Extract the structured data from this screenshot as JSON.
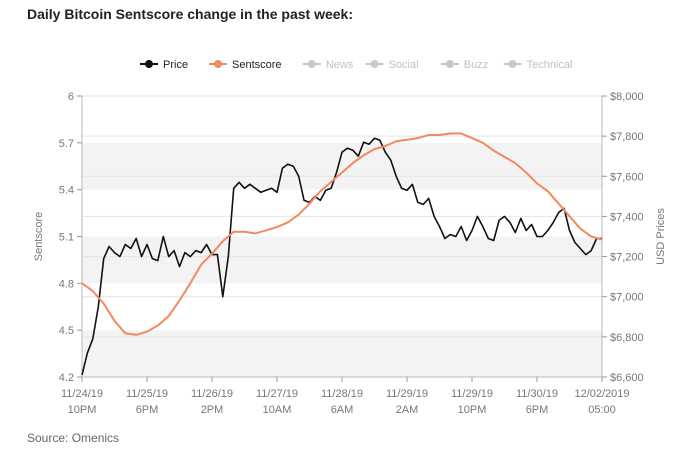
{
  "title": "Daily Bitcoin Sentscore change in the past week:",
  "source": "Source: Omenics",
  "chart_data": {
    "type": "line",
    "x_tick_labels": [
      [
        "11/24/19",
        "10PM"
      ],
      [
        "11/25/19",
        "6PM"
      ],
      [
        "11/26/19",
        "2PM"
      ],
      [
        "11/27/19",
        "10AM"
      ],
      [
        "11/28/19",
        "6AM"
      ],
      [
        "11/29/19",
        "2AM"
      ],
      [
        "11/29/19",
        "10PM"
      ],
      [
        "11/30/19",
        "6PM"
      ],
      [
        "12/02/2019",
        "05:00"
      ]
    ],
    "x_range": [
      0,
      96
    ],
    "y_left": {
      "label": "Sentscore",
      "ticks": [
        "4.2",
        "4.5",
        "4.8",
        "5.1",
        "5.4",
        "5.7",
        "6"
      ],
      "range": [
        4.2,
        6
      ]
    },
    "y_right": {
      "label": "USD Prices",
      "ticks": [
        "$6,600",
        "$6,800",
        "$7,000",
        "$7,200",
        "$7,400",
        "$7,600",
        "$7,800",
        "$8,000"
      ],
      "range": [
        6600,
        8000
      ]
    },
    "legend": {
      "position": "top-center",
      "items": [
        {
          "name": "Price",
          "color": "#111111",
          "active": true
        },
        {
          "name": "Sentscore",
          "color": "#f4885f",
          "active": true
        },
        {
          "name": "News",
          "color": "#c8c8c8",
          "active": false
        },
        {
          "name": "Social",
          "color": "#c8c8c8",
          "active": false
        },
        {
          "name": "Buzz",
          "color": "#c8c8c8",
          "active": false
        },
        {
          "name": "Technical",
          "color": "#c8c8c8",
          "active": false
        }
      ]
    },
    "series": [
      {
        "name": "Price",
        "axis": "right",
        "color": "#111111",
        "x": [
          0,
          1,
          2,
          3,
          4,
          5,
          6,
          7,
          8,
          9,
          10,
          11,
          12,
          13,
          14,
          15,
          16,
          17,
          18,
          19,
          20,
          21,
          22,
          23,
          24,
          25,
          26,
          27,
          28,
          29,
          30,
          31,
          32,
          33,
          34,
          35,
          36,
          37,
          38,
          39,
          40,
          41,
          42,
          43,
          44,
          45,
          46,
          47,
          48,
          49,
          50,
          51,
          52,
          53,
          54,
          55,
          56,
          57,
          58,
          59,
          60,
          61,
          62,
          63,
          64,
          65,
          66,
          67,
          68,
          69,
          70,
          71,
          72,
          73,
          74,
          75,
          76,
          77,
          78,
          79,
          80,
          81,
          82,
          83,
          84,
          85,
          86,
          87,
          88,
          89,
          90,
          91,
          92,
          93,
          94,
          95,
          96
        ],
        "values": [
          6610,
          6720,
          6790,
          6950,
          7190,
          7250,
          7220,
          7200,
          7260,
          7240,
          7290,
          7200,
          7260,
          7190,
          7180,
          7300,
          7200,
          7230,
          7150,
          7220,
          7200,
          7230,
          7220,
          7260,
          7210,
          7210,
          7000,
          7200,
          7540,
          7570,
          7540,
          7560,
          7540,
          7520,
          7530,
          7540,
          7520,
          7640,
          7660,
          7650,
          7600,
          7480,
          7470,
          7500,
          7480,
          7530,
          7540,
          7620,
          7720,
          7740,
          7730,
          7700,
          7770,
          7760,
          7790,
          7780,
          7720,
          7680,
          7600,
          7540,
          7530,
          7560,
          7470,
          7460,
          7490,
          7400,
          7350,
          7290,
          7310,
          7300,
          7350,
          7280,
          7330,
          7400,
          7350,
          7290,
          7280,
          7380,
          7400,
          7370,
          7320,
          7390,
          7330,
          7360,
          7300,
          7300,
          7330,
          7370,
          7420,
          7440,
          7330,
          7270,
          7240,
          7210,
          7230,
          7290,
          7290
        ]
      },
      {
        "name": "Sentscore",
        "axis": "left",
        "color": "#f4885f",
        "x": [
          0,
          2,
          4,
          6,
          8,
          10,
          12,
          14,
          16,
          18,
          20,
          22,
          24,
          26,
          28,
          30,
          32,
          34,
          36,
          38,
          40,
          42,
          44,
          46,
          48,
          50,
          52,
          54,
          56,
          58,
          60,
          62,
          64,
          66,
          68,
          70,
          72,
          74,
          76,
          78,
          80,
          82,
          84,
          86,
          88,
          90,
          92,
          94,
          96
        ],
        "values": [
          4.8,
          4.75,
          4.67,
          4.56,
          4.48,
          4.47,
          4.49,
          4.53,
          4.59,
          4.69,
          4.8,
          4.92,
          4.99,
          5.07,
          5.13,
          5.13,
          5.12,
          5.14,
          5.16,
          5.19,
          5.24,
          5.31,
          5.39,
          5.45,
          5.51,
          5.57,
          5.62,
          5.66,
          5.68,
          5.71,
          5.72,
          5.73,
          5.75,
          5.75,
          5.76,
          5.76,
          5.73,
          5.7,
          5.65,
          5.61,
          5.57,
          5.51,
          5.44,
          5.39,
          5.31,
          5.23,
          5.15,
          5.1,
          5.08
        ]
      }
    ]
  }
}
